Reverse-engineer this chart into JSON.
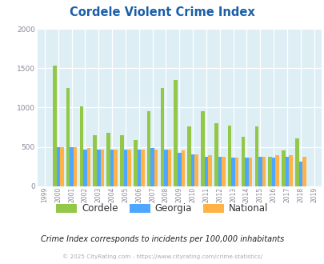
{
  "title": "Cordele Violent Crime Index",
  "years": [
    1999,
    2000,
    2001,
    2002,
    2003,
    2004,
    2005,
    2006,
    2007,
    2008,
    2009,
    2010,
    2011,
    2012,
    2013,
    2014,
    2015,
    2016,
    2017,
    2018,
    2019
  ],
  "cordele": [
    0,
    1530,
    1245,
    1010,
    650,
    680,
    650,
    590,
    950,
    1250,
    1350,
    760,
    950,
    800,
    775,
    630,
    760,
    375,
    450,
    610,
    0
  ],
  "georgia": [
    0,
    500,
    500,
    470,
    460,
    470,
    460,
    470,
    490,
    470,
    420,
    400,
    370,
    370,
    360,
    365,
    375,
    365,
    370,
    310,
    0
  ],
  "national": [
    0,
    500,
    500,
    490,
    470,
    465,
    465,
    470,
    470,
    460,
    455,
    405,
    390,
    375,
    365,
    365,
    375,
    390,
    395,
    375,
    0
  ],
  "cordele_color": "#92c846",
  "georgia_color": "#4da6ff",
  "national_color": "#ffb347",
  "bg_color": "#ddeef5",
  "title_color": "#1a5fa8",
  "subtitle": "Crime Index corresponds to incidents per 100,000 inhabitants",
  "footer": "© 2025 CityRating.com - https://www.cityrating.com/crime-statistics/",
  "ylim": [
    0,
    2000
  ],
  "yticks": [
    0,
    500,
    1000,
    1500,
    2000
  ],
  "bar_width": 0.27
}
